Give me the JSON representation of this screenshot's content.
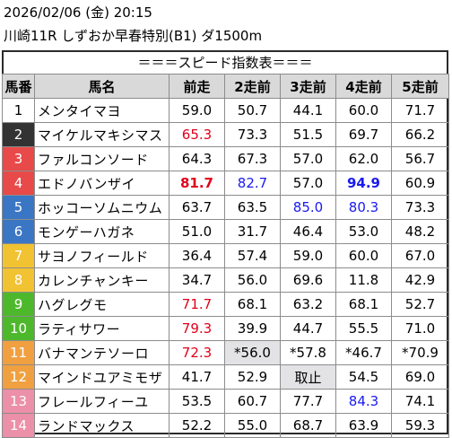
{
  "race": {
    "datetime": "2026/02/06 (金) 20:15",
    "title": "川崎11R しずおか早春特別(B1) ダ1500m"
  },
  "banner": "＝＝＝スピード指数表＝＝＝",
  "columns": [
    "馬番",
    "馬名",
    "前走",
    "2走前",
    "3走前",
    "4走前",
    "5走前"
  ],
  "colors": {
    "waku": {
      "1": {
        "bg": "#ffffff",
        "fg": "#000000"
      },
      "2": {
        "bg": "#333333",
        "fg": "#ffffff"
      },
      "3": {
        "bg": "#e84a4a",
        "fg": "#ffffff"
      },
      "4": {
        "bg": "#e84a4a",
        "fg": "#ffffff"
      },
      "5": {
        "bg": "#3a76c4",
        "fg": "#ffffff"
      },
      "6": {
        "bg": "#3a76c4",
        "fg": "#ffffff"
      },
      "7": {
        "bg": "#f1c232",
        "fg": "#ffffff"
      },
      "8": {
        "bg": "#f1c232",
        "fg": "#ffffff"
      },
      "9": {
        "bg": "#4eb82c",
        "fg": "#ffffff"
      },
      "10": {
        "bg": "#4eb82c",
        "fg": "#ffffff"
      },
      "11": {
        "bg": "#f0a040",
        "fg": "#ffffff"
      },
      "12": {
        "bg": "#f0a040",
        "fg": "#ffffff"
      },
      "13": {
        "bg": "#ec8fa8",
        "fg": "#ffffff"
      },
      "14": {
        "bg": "#ec8fa8",
        "fg": "#ffffff"
      }
    },
    "red": "#e0001b",
    "blue": "#1a1aee",
    "shade": "#e3e3e6"
  },
  "rows": [
    {
      "no": "1",
      "name": "メンタイマヨ",
      "v": [
        {
          "t": "59.0"
        },
        {
          "t": "50.7"
        },
        {
          "t": "44.1"
        },
        {
          "t": "60.0"
        },
        {
          "t": "71.7"
        }
      ]
    },
    {
      "no": "2",
      "name": "マイケルマキシマス",
      "v": [
        {
          "t": "65.3",
          "c": "red"
        },
        {
          "t": "73.3"
        },
        {
          "t": "51.5"
        },
        {
          "t": "69.7"
        },
        {
          "t": "66.2"
        }
      ]
    },
    {
      "no": "3",
      "name": "ファルコンソード",
      "v": [
        {
          "t": "64.3"
        },
        {
          "t": "67.3"
        },
        {
          "t": "57.0"
        },
        {
          "t": "62.0"
        },
        {
          "t": "56.7"
        }
      ]
    },
    {
      "no": "4",
      "name": "エドノバンザイ",
      "v": [
        {
          "t": "81.7",
          "c": "red",
          "b": true
        },
        {
          "t": "82.7",
          "c": "blue"
        },
        {
          "t": "57.0"
        },
        {
          "t": "94.9",
          "c": "blue",
          "b": true
        },
        {
          "t": "60.9"
        }
      ]
    },
    {
      "no": "5",
      "name": "ホッコーソムニウム",
      "v": [
        {
          "t": "63.7"
        },
        {
          "t": "63.5"
        },
        {
          "t": "85.0",
          "c": "blue"
        },
        {
          "t": "80.3",
          "c": "blue"
        },
        {
          "t": "73.3"
        }
      ]
    },
    {
      "no": "6",
      "name": "モンゲーハガネ",
      "v": [
        {
          "t": "51.0"
        },
        {
          "t": "31.7"
        },
        {
          "t": "46.4"
        },
        {
          "t": "53.0"
        },
        {
          "t": "48.2"
        }
      ]
    },
    {
      "no": "7",
      "name": "サヨノフィールド",
      "v": [
        {
          "t": "36.4"
        },
        {
          "t": "57.4"
        },
        {
          "t": "59.0"
        },
        {
          "t": "60.0"
        },
        {
          "t": "67.0"
        }
      ]
    },
    {
      "no": "8",
      "name": "カレンチャンキー",
      "v": [
        {
          "t": "34.7"
        },
        {
          "t": "56.0"
        },
        {
          "t": "69.6"
        },
        {
          "t": "11.8"
        },
        {
          "t": "42.9"
        }
      ]
    },
    {
      "no": "9",
      "name": "ハグレグモ",
      "v": [
        {
          "t": "71.7",
          "c": "red"
        },
        {
          "t": "68.1"
        },
        {
          "t": "63.2"
        },
        {
          "t": "68.1"
        },
        {
          "t": "52.7"
        }
      ]
    },
    {
      "no": "10",
      "name": "ラティサワー",
      "v": [
        {
          "t": "79.3",
          "c": "red"
        },
        {
          "t": "39.9"
        },
        {
          "t": "44.7"
        },
        {
          "t": "55.5"
        },
        {
          "t": "71.0"
        }
      ]
    },
    {
      "no": "11",
      "name": "バナマンテソーロ",
      "v": [
        {
          "t": "72.3",
          "c": "red"
        },
        {
          "t": "*56.0",
          "s": true
        },
        {
          "t": "*57.8"
        },
        {
          "t": "*46.7"
        },
        {
          "t": "*70.9"
        }
      ]
    },
    {
      "no": "12",
      "name": "マインドユアミモザ",
      "v": [
        {
          "t": "41.7"
        },
        {
          "t": "52.9"
        },
        {
          "t": "取止",
          "s": true
        },
        {
          "t": "54.5"
        },
        {
          "t": "69.0"
        }
      ]
    },
    {
      "no": "13",
      "name": "フレールフィーユ",
      "v": [
        {
          "t": "53.5"
        },
        {
          "t": "60.7"
        },
        {
          "t": "77.7"
        },
        {
          "t": "84.3",
          "c": "blue"
        },
        {
          "t": "74.1"
        }
      ]
    },
    {
      "no": "14",
      "name": "ランドマックス",
      "v": [
        {
          "t": "52.2"
        },
        {
          "t": "55.0"
        },
        {
          "t": "68.7"
        },
        {
          "t": "63.9"
        },
        {
          "t": "59.3"
        }
      ]
    }
  ]
}
